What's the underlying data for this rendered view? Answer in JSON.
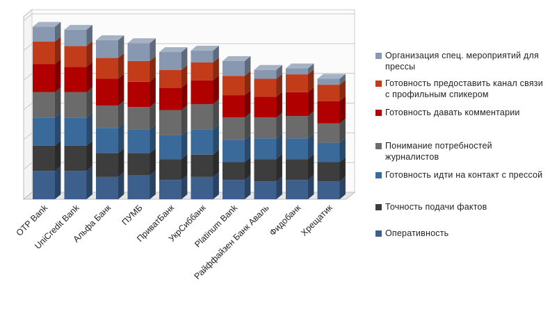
{
  "chart_data": {
    "type": "bar",
    "stacked": true,
    "style": "3d",
    "categories": [
      "OTP Bank",
      "UniCredit Bank",
      "Альфа Банк",
      "ПУМБ",
      "ПриватБанк",
      "УкрСиббанк",
      "Platinum Bank",
      "Райффайзен Банк Аваль",
      "Фидобанк",
      "Хрещатик"
    ],
    "series": [
      {
        "name": "Оперативность",
        "color": "#3c5f8c",
        "values": [
          0.95,
          0.95,
          0.75,
          0.8,
          0.65,
          0.75,
          0.65,
          0.6,
          0.65,
          0.6
        ]
      },
      {
        "name": "Точность подачи фактов",
        "color": "#3d3d3d",
        "values": [
          0.85,
          0.85,
          0.8,
          0.75,
          0.7,
          0.75,
          0.6,
          0.75,
          0.7,
          0.65
        ]
      },
      {
        "name": "Готовность идти на контакт с прессой",
        "color": "#3a6a9a",
        "values": [
          0.95,
          0.95,
          0.85,
          0.8,
          0.8,
          0.85,
          0.75,
          0.7,
          0.7,
          0.65
        ]
      },
      {
        "name": "Понимание потребностей журналистов",
        "color": "#6b6b6b",
        "values": [
          0.85,
          0.85,
          0.75,
          0.75,
          0.85,
          0.85,
          0.75,
          0.7,
          0.75,
          0.65
        ]
      },
      {
        "name": "Готовность давать комментарии",
        "color": "#b00000",
        "values": [
          0.95,
          0.85,
          0.9,
          0.85,
          0.75,
          0.8,
          0.75,
          0.7,
          0.8,
          0.75
        ]
      },
      {
        "name": "Готовность предоставить канал связи с профильным  спикером",
        "color": "#c23c1a",
        "values": [
          0.75,
          0.7,
          0.7,
          0.7,
          0.6,
          0.6,
          0.65,
          0.6,
          0.6,
          0.55
        ]
      },
      {
        "name": "Организация спец. мероприятий для прессы",
        "color": "#8798b0",
        "values": [
          0.5,
          0.55,
          0.6,
          0.6,
          0.6,
          0.4,
          0.5,
          0.3,
          0.2,
          0.2
        ]
      }
    ],
    "ylim": [
      0,
      6
    ],
    "grid": true,
    "legend_position": "right"
  }
}
